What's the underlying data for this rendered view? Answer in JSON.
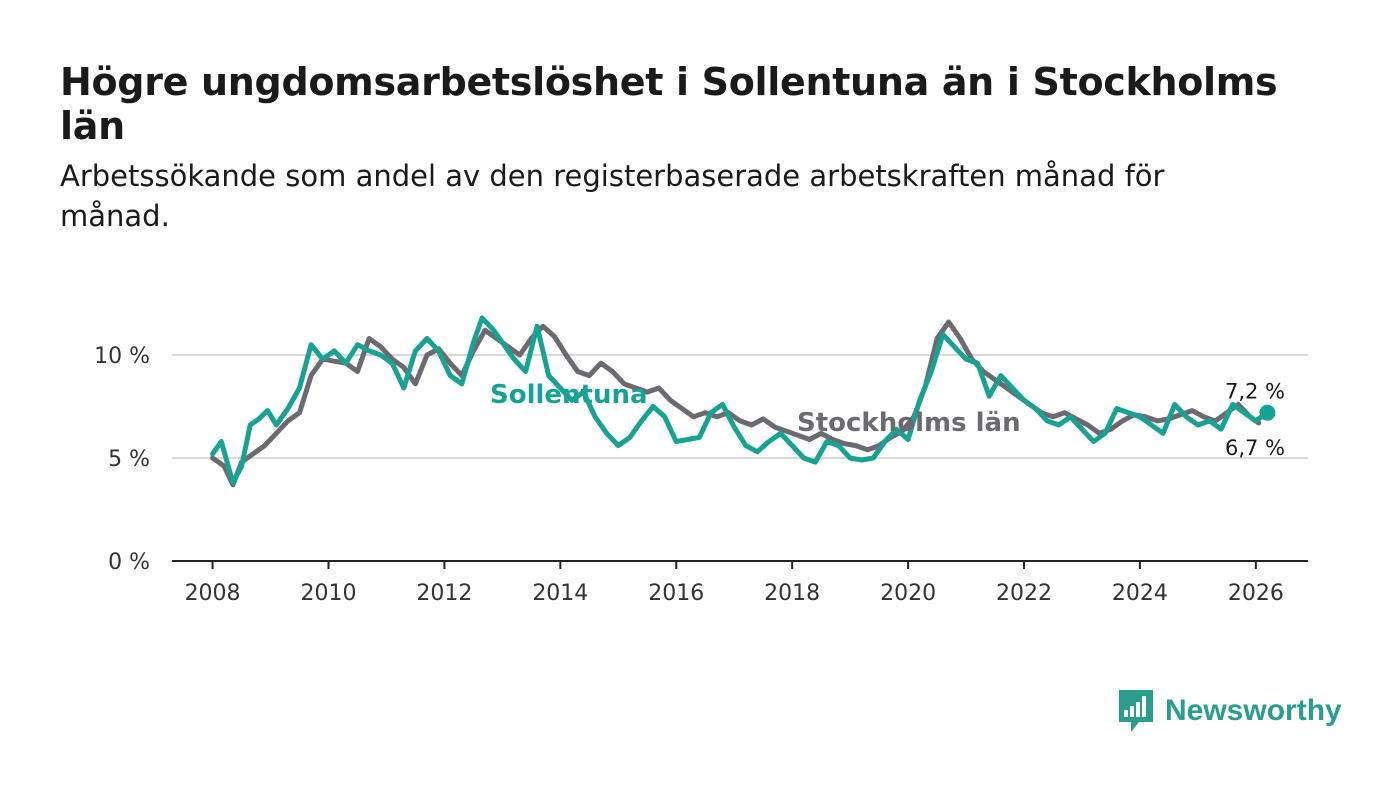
{
  "chart_data": {
    "type": "line",
    "title": "Högre ungdomsarbetslöshet i Sollentuna än i Stockholms län",
    "subtitle": "Arbetssökande som andel av den registerbaserade arbetskraften månad för månad.",
    "xlabel": "",
    "ylabel": "",
    "xlim": [
      2007.3,
      2026.9
    ],
    "ylim": [
      0,
      12
    ],
    "y_ticks": [
      0,
      5,
      10
    ],
    "y_tick_labels": [
      "0 %",
      "5 %",
      "10 %"
    ],
    "x_ticks": [
      2008,
      2010,
      2012,
      2014,
      2016,
      2018,
      2020,
      2022,
      2024,
      2026
    ],
    "x_tick_labels": [
      "2008",
      "2010",
      "2012",
      "2014",
      "2016",
      "2018",
      "2020",
      "2022",
      "2024",
      "2026"
    ],
    "grid": true,
    "series": [
      {
        "name": "Stockholms län",
        "color": "#6b6a70",
        "label": "Stockholms län",
        "last_value_label": "6,7 %",
        "points": [
          [
            2008.0,
            5.0
          ],
          [
            2008.2,
            4.6
          ],
          [
            2008.35,
            3.7
          ],
          [
            2008.5,
            4.8
          ],
          [
            2008.7,
            5.2
          ],
          [
            2008.9,
            5.6
          ],
          [
            2009.1,
            6.2
          ],
          [
            2009.3,
            6.8
          ],
          [
            2009.5,
            7.2
          ],
          [
            2009.7,
            9.0
          ],
          [
            2009.9,
            9.8
          ],
          [
            2010.1,
            9.7
          ],
          [
            2010.3,
            9.6
          ],
          [
            2010.5,
            9.2
          ],
          [
            2010.7,
            10.8
          ],
          [
            2010.9,
            10.4
          ],
          [
            2011.1,
            9.8
          ],
          [
            2011.3,
            9.4
          ],
          [
            2011.5,
            8.6
          ],
          [
            2011.7,
            10.0
          ],
          [
            2011.9,
            10.3
          ],
          [
            2012.1,
            9.6
          ],
          [
            2012.3,
            9.0
          ],
          [
            2012.5,
            10.2
          ],
          [
            2012.7,
            11.2
          ],
          [
            2012.9,
            10.8
          ],
          [
            2013.1,
            10.4
          ],
          [
            2013.3,
            10.0
          ],
          [
            2013.5,
            10.8
          ],
          [
            2013.7,
            11.4
          ],
          [
            2013.9,
            10.9
          ],
          [
            2014.1,
            10.0
          ],
          [
            2014.3,
            9.2
          ],
          [
            2014.5,
            9.0
          ],
          [
            2014.7,
            9.6
          ],
          [
            2014.9,
            9.2
          ],
          [
            2015.1,
            8.6
          ],
          [
            2015.3,
            8.4
          ],
          [
            2015.5,
            8.2
          ],
          [
            2015.7,
            8.4
          ],
          [
            2015.9,
            7.8
          ],
          [
            2016.1,
            7.4
          ],
          [
            2016.3,
            7.0
          ],
          [
            2016.5,
            7.2
          ],
          [
            2016.7,
            7.0
          ],
          [
            2016.9,
            7.2
          ],
          [
            2017.1,
            6.8
          ],
          [
            2017.3,
            6.6
          ],
          [
            2017.5,
            6.9
          ],
          [
            2017.7,
            6.5
          ],
          [
            2017.9,
            6.3
          ],
          [
            2018.1,
            6.1
          ],
          [
            2018.3,
            5.9
          ],
          [
            2018.5,
            6.2
          ],
          [
            2018.7,
            5.9
          ],
          [
            2018.9,
            5.7
          ],
          [
            2019.1,
            5.6
          ],
          [
            2019.3,
            5.4
          ],
          [
            2019.5,
            5.6
          ],
          [
            2019.7,
            6.0
          ],
          [
            2019.9,
            6.3
          ],
          [
            2020.1,
            7.0
          ],
          [
            2020.3,
            8.5
          ],
          [
            2020.5,
            10.8
          ],
          [
            2020.7,
            11.6
          ],
          [
            2020.9,
            10.8
          ],
          [
            2021.1,
            9.8
          ],
          [
            2021.3,
            9.2
          ],
          [
            2021.5,
            8.8
          ],
          [
            2021.7,
            8.4
          ],
          [
            2021.9,
            8.0
          ],
          [
            2022.1,
            7.6
          ],
          [
            2022.3,
            7.2
          ],
          [
            2022.5,
            7.0
          ],
          [
            2022.7,
            7.2
          ],
          [
            2022.9,
            6.9
          ],
          [
            2023.1,
            6.6
          ],
          [
            2023.3,
            6.2
          ],
          [
            2023.5,
            6.4
          ],
          [
            2023.7,
            6.8
          ],
          [
            2023.9,
            7.1
          ],
          [
            2024.1,
            7.0
          ],
          [
            2024.3,
            6.8
          ],
          [
            2024.5,
            6.9
          ],
          [
            2024.7,
            7.1
          ],
          [
            2024.9,
            7.3
          ],
          [
            2025.1,
            7.0
          ],
          [
            2025.3,
            6.8
          ],
          [
            2025.5,
            7.2
          ],
          [
            2025.7,
            7.6
          ],
          [
            2025.9,
            7.0
          ],
          [
            2026.05,
            6.7
          ]
        ]
      },
      {
        "name": "Sollentuna",
        "color": "#16a394",
        "label": "Sollentuna",
        "last_value_label": "7,2 %",
        "points": [
          [
            2008.0,
            5.2
          ],
          [
            2008.15,
            5.8
          ],
          [
            2008.35,
            3.8
          ],
          [
            2008.5,
            4.6
          ],
          [
            2008.65,
            6.6
          ],
          [
            2008.8,
            6.9
          ],
          [
            2008.95,
            7.3
          ],
          [
            2009.1,
            6.6
          ],
          [
            2009.3,
            7.4
          ],
          [
            2009.5,
            8.4
          ],
          [
            2009.7,
            10.5
          ],
          [
            2009.9,
            9.8
          ],
          [
            2010.1,
            10.2
          ],
          [
            2010.3,
            9.6
          ],
          [
            2010.5,
            10.5
          ],
          [
            2010.7,
            10.2
          ],
          [
            2010.9,
            10.0
          ],
          [
            2011.1,
            9.6
          ],
          [
            2011.3,
            8.4
          ],
          [
            2011.5,
            10.2
          ],
          [
            2011.7,
            10.8
          ],
          [
            2011.9,
            10.2
          ],
          [
            2012.1,
            9.0
          ],
          [
            2012.3,
            8.6
          ],
          [
            2012.5,
            10.6
          ],
          [
            2012.65,
            11.8
          ],
          [
            2012.85,
            11.2
          ],
          [
            2013.0,
            10.6
          ],
          [
            2013.2,
            9.8
          ],
          [
            2013.4,
            9.2
          ],
          [
            2013.6,
            11.4
          ],
          [
            2013.8,
            9.0
          ],
          [
            2014.0,
            8.4
          ],
          [
            2014.2,
            7.8
          ],
          [
            2014.4,
            8.2
          ],
          [
            2014.6,
            7.0
          ],
          [
            2014.8,
            6.2
          ],
          [
            2015.0,
            5.6
          ],
          [
            2015.2,
            6.0
          ],
          [
            2015.4,
            6.8
          ],
          [
            2015.6,
            7.5
          ],
          [
            2015.8,
            7.0
          ],
          [
            2016.0,
            5.8
          ],
          [
            2016.2,
            5.9
          ],
          [
            2016.4,
            6.0
          ],
          [
            2016.6,
            7.2
          ],
          [
            2016.8,
            7.6
          ],
          [
            2017.0,
            6.5
          ],
          [
            2017.2,
            5.6
          ],
          [
            2017.4,
            5.3
          ],
          [
            2017.6,
            5.8
          ],
          [
            2017.8,
            6.2
          ],
          [
            2018.0,
            5.6
          ],
          [
            2018.2,
            5.0
          ],
          [
            2018.4,
            4.8
          ],
          [
            2018.6,
            5.8
          ],
          [
            2018.8,
            5.6
          ],
          [
            2019.0,
            5.0
          ],
          [
            2019.2,
            4.9
          ],
          [
            2019.4,
            5.0
          ],
          [
            2019.6,
            5.8
          ],
          [
            2019.8,
            6.4
          ],
          [
            2020.0,
            5.9
          ],
          [
            2020.2,
            7.8
          ],
          [
            2020.4,
            9.2
          ],
          [
            2020.6,
            11.0
          ],
          [
            2020.8,
            10.4
          ],
          [
            2021.0,
            9.8
          ],
          [
            2021.2,
            9.6
          ],
          [
            2021.4,
            8.0
          ],
          [
            2021.6,
            9.0
          ],
          [
            2021.8,
            8.4
          ],
          [
            2022.0,
            7.8
          ],
          [
            2022.2,
            7.4
          ],
          [
            2022.4,
            6.8
          ],
          [
            2022.6,
            6.6
          ],
          [
            2022.8,
            7.0
          ],
          [
            2023.0,
            6.4
          ],
          [
            2023.2,
            5.8
          ],
          [
            2023.4,
            6.2
          ],
          [
            2023.6,
            7.4
          ],
          [
            2023.8,
            7.2
          ],
          [
            2024.0,
            7.0
          ],
          [
            2024.2,
            6.6
          ],
          [
            2024.4,
            6.2
          ],
          [
            2024.6,
            7.6
          ],
          [
            2024.8,
            7.0
          ],
          [
            2025.0,
            6.6
          ],
          [
            2025.2,
            6.8
          ],
          [
            2025.4,
            6.4
          ],
          [
            2025.6,
            7.6
          ],
          [
            2025.8,
            7.2
          ],
          [
            2026.0,
            6.8
          ],
          [
            2026.2,
            7.2
          ]
        ]
      }
    ]
  },
  "logo": {
    "brand": "Newsworthy"
  }
}
